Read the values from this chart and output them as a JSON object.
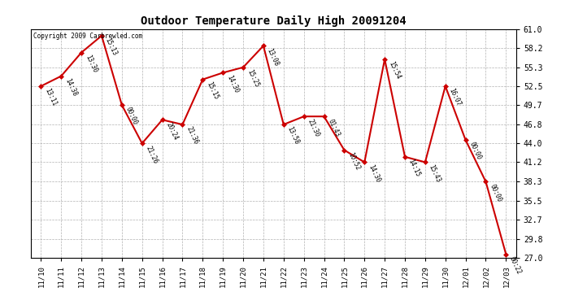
{
  "title": "Outdoor Temperature Daily High 20091204",
  "copyright": "Copyright 2009 Carbrewled.com",
  "dates": [
    "11/10",
    "11/11",
    "11/12",
    "11/13",
    "11/14",
    "11/15",
    "11/16",
    "11/17",
    "11/18",
    "11/19",
    "11/20",
    "11/21",
    "11/22",
    "11/23",
    "11/24",
    "11/25",
    "11/26",
    "11/27",
    "11/28",
    "11/29",
    "11/30",
    "12/01",
    "12/02",
    "12/03"
  ],
  "temps": [
    52.5,
    54.0,
    57.5,
    60.0,
    49.7,
    44.0,
    47.5,
    46.8,
    53.5,
    54.5,
    55.3,
    58.5,
    46.8,
    48.0,
    48.0,
    43.0,
    41.2,
    56.5,
    42.0,
    41.2,
    52.5,
    44.5,
    38.3,
    27.5
  ],
  "labels": [
    "13:11",
    "14:38",
    "13:30",
    "15:13",
    "00:00",
    "21:26",
    "20:24",
    "21:36",
    "15:15",
    "14:30",
    "15:25",
    "13:08",
    "13:58",
    "21:30",
    "01:43",
    "10:52",
    "14:30",
    "15:54",
    "14:15",
    "15:43",
    "16:07",
    "00:00",
    "00:00",
    "00:22"
  ],
  "line_color": "#cc0000",
  "marker_color": "#cc0000",
  "bg_color": "#ffffff",
  "grid_color": "#aaaaaa",
  "ymin": 27.0,
  "ymax": 61.0,
  "yticks": [
    27.0,
    29.8,
    32.7,
    35.5,
    38.3,
    41.2,
    44.0,
    46.8,
    49.7,
    52.5,
    55.3,
    58.2,
    61.0
  ]
}
